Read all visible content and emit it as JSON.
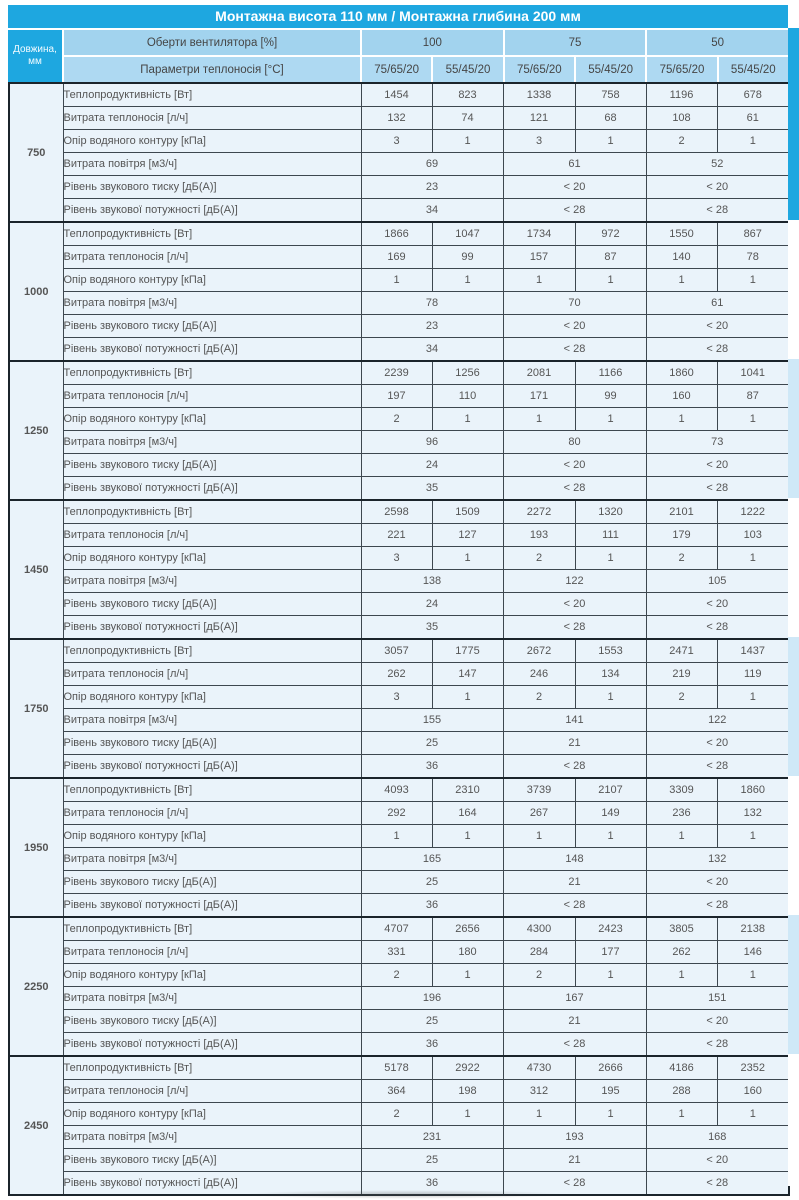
{
  "title": "Монтажна висота 110 мм / Монтажна глибина 200 мм",
  "header": {
    "length_label": "Довжина, мм",
    "fan_speed_label": "Оберти вентилятора [%]",
    "fan_speeds": [
      "100",
      "75",
      "50"
    ],
    "coolant_label": "Параметри теплоносія [°C]",
    "coolant_params": [
      "75/65/20",
      "55/45/20",
      "75/65/20",
      "55/45/20",
      "75/65/20",
      "55/45/20"
    ]
  },
  "row_labels": [
    "Теплопродуктивність [Вт]",
    "Витрата теплоносія [л/ч]",
    "Опір водяного контуру [кПа]",
    "Витрата повітря [м3/ч]",
    "Рівень звукового тиску [дБ(А)]",
    "Рівень звукової потужності [дБ(А)]"
  ],
  "sections": [
    {
      "length": "750",
      "heat_output": [
        "1454",
        "823",
        "1338",
        "758",
        "1196",
        "678"
      ],
      "coolant_flow": [
        "132",
        "74",
        "121",
        "68",
        "108",
        "61"
      ],
      "water_resistance": [
        "3",
        "1",
        "3",
        "1",
        "2",
        "1"
      ],
      "air_flow": [
        "69",
        "61",
        "52"
      ],
      "sound_pressure": [
        "23",
        "< 20",
        "< 20"
      ],
      "sound_power": [
        "34",
        "< 28",
        "< 28"
      ]
    },
    {
      "length": "1000",
      "heat_output": [
        "1866",
        "1047",
        "1734",
        "972",
        "1550",
        "867"
      ],
      "coolant_flow": [
        "169",
        "99",
        "157",
        "87",
        "140",
        "78"
      ],
      "water_resistance": [
        "1",
        "1",
        "1",
        "1",
        "1",
        "1"
      ],
      "air_flow": [
        "78",
        "70",
        "61"
      ],
      "sound_pressure": [
        "23",
        "< 20",
        "< 20"
      ],
      "sound_power": [
        "34",
        "< 28",
        "< 28"
      ]
    },
    {
      "length": "1250",
      "heat_output": [
        "2239",
        "1256",
        "2081",
        "1166",
        "1860",
        "1041"
      ],
      "coolant_flow": [
        "197",
        "110",
        "171",
        "99",
        "160",
        "87"
      ],
      "water_resistance": [
        "2",
        "1",
        "1",
        "1",
        "1",
        "1"
      ],
      "air_flow": [
        "96",
        "80",
        "73"
      ],
      "sound_pressure": [
        "24",
        "< 20",
        "< 20"
      ],
      "sound_power": [
        "35",
        "< 28",
        "< 28"
      ]
    },
    {
      "length": "1450",
      "heat_output": [
        "2598",
        "1509",
        "2272",
        "1320",
        "2101",
        "1222"
      ],
      "coolant_flow": [
        "221",
        "127",
        "193",
        "111",
        "179",
        "103"
      ],
      "water_resistance": [
        "3",
        "1",
        "2",
        "1",
        "2",
        "1"
      ],
      "air_flow": [
        "138",
        "122",
        "105"
      ],
      "sound_pressure": [
        "24",
        "< 20",
        "< 20"
      ],
      "sound_power": [
        "35",
        "< 28",
        "< 28"
      ]
    },
    {
      "length": "1750",
      "heat_output": [
        "3057",
        "1775",
        "2672",
        "1553",
        "2471",
        "1437"
      ],
      "coolant_flow": [
        "262",
        "147",
        "246",
        "134",
        "219",
        "119"
      ],
      "water_resistance": [
        "3",
        "1",
        "2",
        "1",
        "2",
        "1"
      ],
      "air_flow": [
        "155",
        "141",
        "122"
      ],
      "sound_pressure": [
        "25",
        "21",
        "< 20"
      ],
      "sound_power": [
        "36",
        "< 28",
        "< 28"
      ]
    },
    {
      "length": "1950",
      "heat_output": [
        "4093",
        "2310",
        "3739",
        "2107",
        "3309",
        "1860"
      ],
      "coolant_flow": [
        "292",
        "164",
        "267",
        "149",
        "236",
        "132"
      ],
      "water_resistance": [
        "1",
        "1",
        "1",
        "1",
        "1",
        "1"
      ],
      "air_flow": [
        "165",
        "148",
        "132"
      ],
      "sound_pressure": [
        "25",
        "21",
        "< 20"
      ],
      "sound_power": [
        "36",
        "< 28",
        "< 28"
      ]
    },
    {
      "length": "2250",
      "heat_output": [
        "4707",
        "2656",
        "4300",
        "2423",
        "3805",
        "2138"
      ],
      "coolant_flow": [
        "331",
        "180",
        "284",
        "177",
        "262",
        "146"
      ],
      "water_resistance": [
        "2",
        "1",
        "2",
        "1",
        "1",
        "1"
      ],
      "air_flow": [
        "196",
        "167",
        "151"
      ],
      "sound_pressure": [
        "25",
        "21",
        "< 20"
      ],
      "sound_power": [
        "36",
        "< 28",
        "< 28"
      ]
    },
    {
      "length": "2450",
      "heat_output": [
        "5178",
        "2922",
        "4730",
        "2666",
        "4186",
        "2352"
      ],
      "coolant_flow": [
        "364",
        "198",
        "312",
        "195",
        "288",
        "160"
      ],
      "water_resistance": [
        "2",
        "1",
        "1",
        "1",
        "1",
        "1"
      ],
      "air_flow": [
        "231",
        "193",
        "168"
      ],
      "sound_pressure": [
        "25",
        "21",
        "< 20"
      ],
      "sound_power": [
        "36",
        "< 28",
        "< 28"
      ]
    }
  ],
  "colors": {
    "accent": "#1ea7e0",
    "hdr1": "#a2d3ee",
    "hdr2": "#aed9f2",
    "len-bg": "#c9e6f7",
    "row-bg": "#eaf3fa",
    "border": "#3d474f",
    "border-dark": "#1b242b",
    "sliver-alt": "#cfe8f7"
  }
}
